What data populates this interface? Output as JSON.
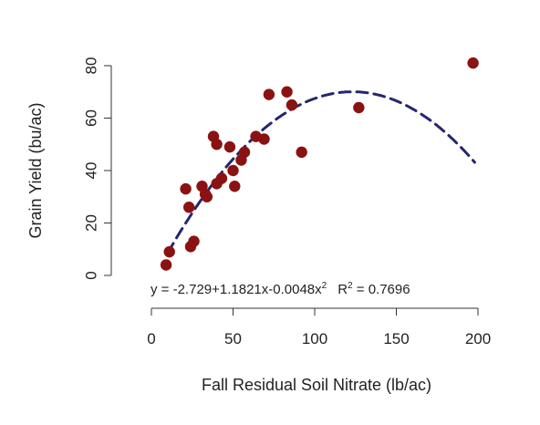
{
  "chart_data": {
    "type": "scatter",
    "title": "",
    "xlabel": "Fall Residual Soil Nitrate (lb/ac)",
    "ylabel": "Grain Yield (bu/ac)",
    "xlim": [
      0,
      200
    ],
    "ylim": [
      0,
      80
    ],
    "x_ticks": [
      "0",
      "50",
      "100",
      "150",
      "200"
    ],
    "y_ticks": [
      "0",
      "20",
      "40",
      "60",
      "80"
    ],
    "grid": false,
    "points": [
      {
        "x": 9,
        "y": 4
      },
      {
        "x": 11,
        "y": 9
      },
      {
        "x": 21,
        "y": 33
      },
      {
        "x": 23,
        "y": 26
      },
      {
        "x": 24,
        "y": 11
      },
      {
        "x": 26,
        "y": 13
      },
      {
        "x": 31,
        "y": 34
      },
      {
        "x": 33,
        "y": 31
      },
      {
        "x": 34,
        "y": 30
      },
      {
        "x": 38,
        "y": 53
      },
      {
        "x": 40,
        "y": 50
      },
      {
        "x": 40,
        "y": 35
      },
      {
        "x": 43,
        "y": 37
      },
      {
        "x": 48,
        "y": 49
      },
      {
        "x": 50,
        "y": 40
      },
      {
        "x": 51,
        "y": 34
      },
      {
        "x": 55,
        "y": 44
      },
      {
        "x": 57,
        "y": 47
      },
      {
        "x": 64,
        "y": 53
      },
      {
        "x": 69,
        "y": 52
      },
      {
        "x": 72,
        "y": 69
      },
      {
        "x": 83,
        "y": 70
      },
      {
        "x": 86,
        "y": 65
      },
      {
        "x": 92,
        "y": 47
      },
      {
        "x": 127,
        "y": 64
      },
      {
        "x": 197,
        "y": 81
      }
    ],
    "fit": {
      "style": "dashed",
      "model": "quadratic-plateau",
      "coefficients": {
        "intercept": -2.729,
        "linear": 1.1821,
        "quadratic": -0.0048
      },
      "x_start": 10,
      "plateau_y": 70,
      "x_end": 198
    },
    "equation_label": "y = -2.729+1.1821x-0.0048x",
    "equation_exponent": "2",
    "r2_label": "R",
    "r2_exponent": "2",
    "r2_value": " = 0.7696",
    "colors": {
      "points": "#8b1212",
      "fit_line": "#26266e",
      "axis": "#333333"
    }
  }
}
